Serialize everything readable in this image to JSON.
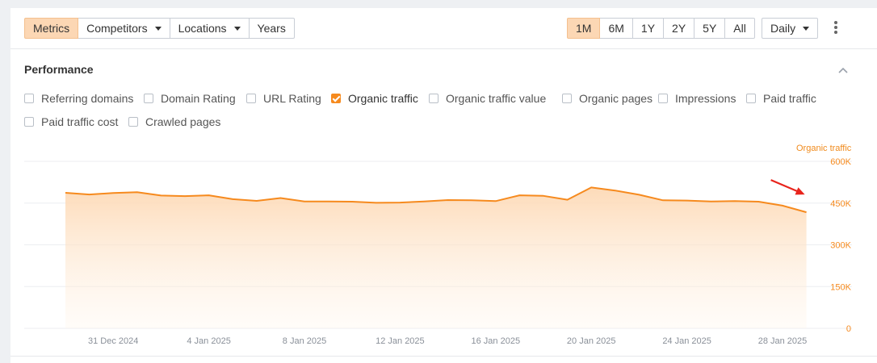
{
  "toolbar": {
    "left_buttons": [
      {
        "label": "Metrics",
        "active": true,
        "dropdown": false
      },
      {
        "label": "Competitors",
        "active": false,
        "dropdown": true
      },
      {
        "label": "Locations",
        "active": false,
        "dropdown": true
      },
      {
        "label": "Years",
        "active": false,
        "dropdown": false
      }
    ],
    "range_buttons": [
      {
        "label": "1M",
        "active": true
      },
      {
        "label": "6M",
        "active": false
      },
      {
        "label": "1Y",
        "active": false
      },
      {
        "label": "2Y",
        "active": false
      },
      {
        "label": "5Y",
        "active": false
      },
      {
        "label": "All",
        "active": false
      }
    ],
    "interval_label": "Daily",
    "more_icon": "kebab-vertical-icon"
  },
  "performance": {
    "title": "Performance",
    "collapse_icon": "chevron-up-icon",
    "metrics": [
      {
        "label": "Referring domains",
        "checked": false
      },
      {
        "label": "Domain Rating",
        "checked": false
      },
      {
        "label": "URL Rating",
        "checked": false
      },
      {
        "label": "Organic traffic",
        "checked": true
      },
      {
        "label": "Organic traffic value",
        "checked": false
      },
      {
        "label": "Organic pages",
        "checked": false
      },
      {
        "label": "Impressions",
        "checked": false
      },
      {
        "label": "Paid traffic",
        "checked": false
      },
      {
        "label": "Paid traffic cost",
        "checked": false
      },
      {
        "label": "Crawled pages",
        "checked": false
      }
    ]
  },
  "colors": {
    "accent": "#f68a1e",
    "accent_light": "#fcd7b4",
    "annotation_arrow": "#e8241c"
  },
  "chart_data": {
    "type": "area",
    "series": [
      {
        "name": "Organic traffic",
        "x": [
          "2024-12-29",
          "2024-12-30",
          "2024-12-31",
          "2025-01-01",
          "2025-01-02",
          "2025-01-03",
          "2025-01-04",
          "2025-01-05",
          "2025-01-06",
          "2025-01-07",
          "2025-01-08",
          "2025-01-09",
          "2025-01-10",
          "2025-01-11",
          "2025-01-12",
          "2025-01-13",
          "2025-01-14",
          "2025-01-15",
          "2025-01-16",
          "2025-01-17",
          "2025-01-18",
          "2025-01-19",
          "2025-01-20",
          "2025-01-21",
          "2025-01-22",
          "2025-01-23",
          "2025-01-24",
          "2025-01-25",
          "2025-01-26",
          "2025-01-27",
          "2025-01-28",
          "2025-01-29"
        ],
        "values": [
          487000,
          481000,
          486000,
          489000,
          477000,
          475000,
          478000,
          464000,
          458000,
          468000,
          456000,
          456000,
          455000,
          451000,
          452000,
          456000,
          461000,
          460000,
          457000,
          478000,
          476000,
          462000,
          506000,
          495000,
          480000,
          460000,
          459000,
          456000,
          457000,
          455000,
          441000,
          417000
        ]
      }
    ],
    "x_tick_labels": [
      "31 Dec 2024",
      "4 Jan 2025",
      "8 Jan 2025",
      "12 Jan 2025",
      "16 Jan 2025",
      "20 Jan 2025",
      "24 Jan 2025",
      "28 Jan 2025"
    ],
    "x_tick_dates": [
      "2024-12-31",
      "2025-01-04",
      "2025-01-08",
      "2025-01-12",
      "2025-01-16",
      "2025-01-20",
      "2025-01-24",
      "2025-01-28"
    ],
    "y_tick_labels": [
      "600K",
      "450K",
      "300K",
      "150K",
      "0"
    ],
    "y_ticks": [
      600000,
      450000,
      300000,
      150000,
      0
    ],
    "ylim": [
      0,
      600000
    ],
    "y_axis_title": "Organic traffic",
    "y_axis_side": "right",
    "grid": true,
    "annotation": "red-arrow-pointing-to-last-value"
  }
}
